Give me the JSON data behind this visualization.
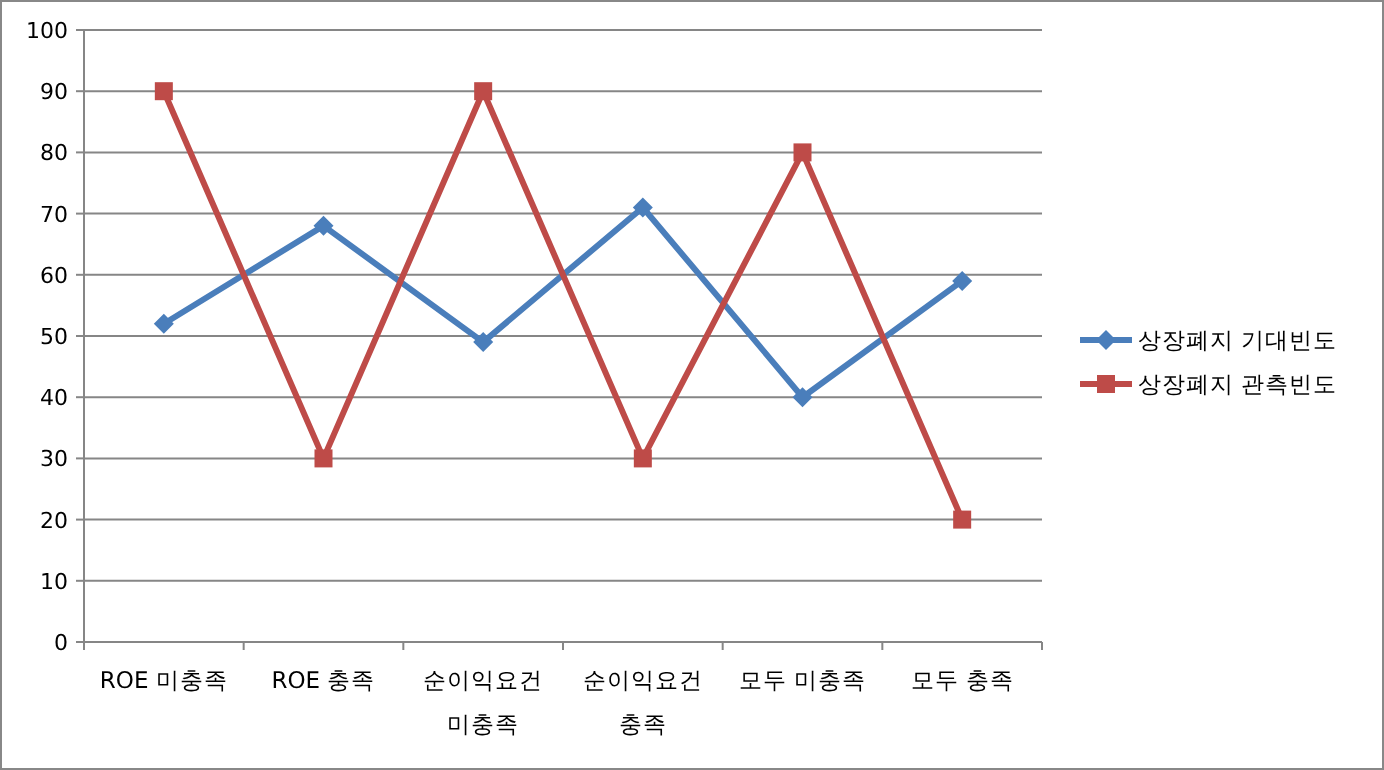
{
  "chart_data": {
    "type": "line",
    "categories": [
      "ROE 미충족",
      "ROE 충족",
      "순이익요건 미충족",
      "순이익요건 충족",
      "모두 미충족",
      "모두 충족"
    ],
    "series": [
      {
        "name": "상장폐지 기대빈도",
        "color": "#4a7ebb",
        "marker": "diamond",
        "values": [
          52,
          68,
          49,
          71,
          40,
          59
        ]
      },
      {
        "name": "상장폐지 관측빈도",
        "color": "#be4b48",
        "marker": "square",
        "values": [
          90,
          30,
          90,
          30,
          80,
          20
        ]
      }
    ],
    "ylim": [
      0,
      100
    ],
    "yticks": [
      0,
      10,
      20,
      30,
      40,
      50,
      60,
      70,
      80,
      90,
      100
    ],
    "grid": "y",
    "legend": "right"
  }
}
